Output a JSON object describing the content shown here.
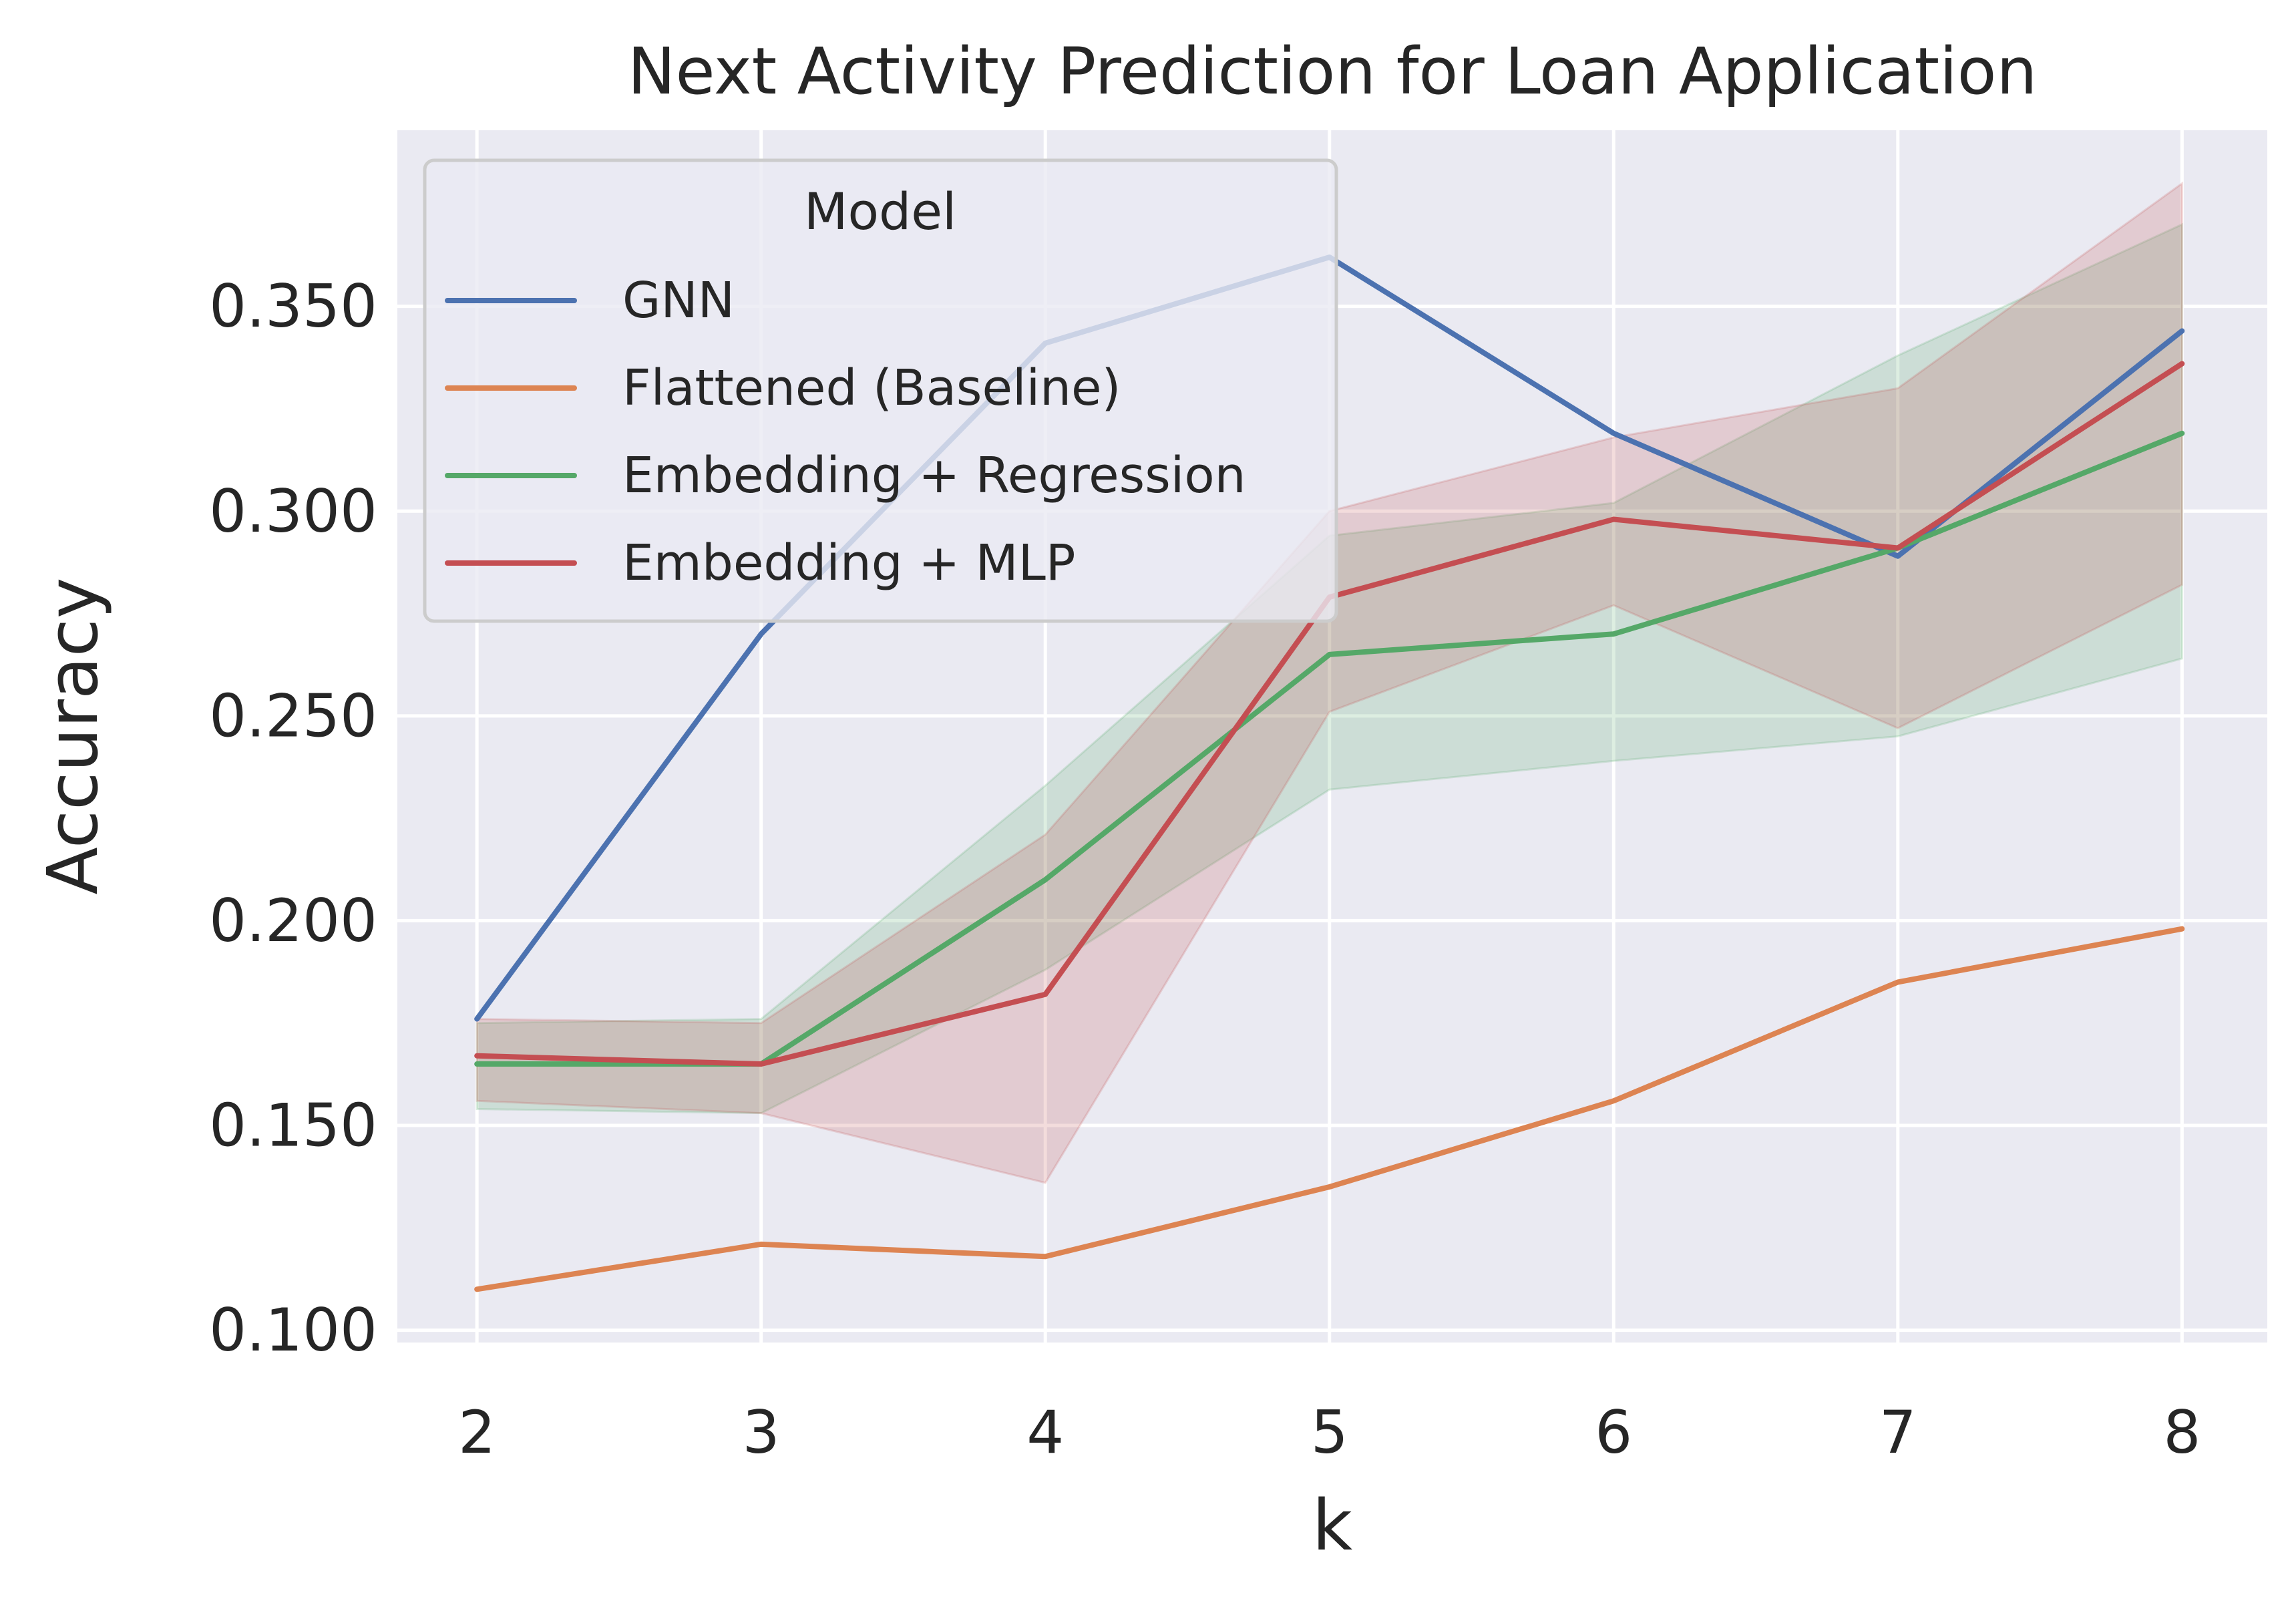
{
  "chart_data": {
    "type": "line",
    "title": "Next Activity Prediction for Loan Application",
    "xlabel": "k",
    "ylabel": "Accuracy",
    "x": [
      2,
      3,
      4,
      5,
      6,
      7,
      8
    ],
    "x_tick_labels": [
      "2",
      "3",
      "4",
      "5",
      "6",
      "7",
      "8"
    ],
    "y_ticks": [
      0.1,
      0.15,
      0.2,
      0.25,
      0.3,
      0.35
    ],
    "y_tick_labels": [
      "0.100",
      "0.150",
      "0.200",
      "0.250",
      "0.300",
      "0.350"
    ],
    "xlim": [
      1.72,
      8.3
    ],
    "ylim": [
      0.097,
      0.393
    ],
    "grid": true,
    "legend": {
      "title": "Model",
      "placement": "top-left"
    },
    "series": [
      {
        "name": "GNN",
        "color": "#4c72b0",
        "values": [
          0.176,
          0.27,
          0.341,
          0.362,
          0.319,
          0.289,
          0.344
        ]
      },
      {
        "name": "Flattened (Baseline)",
        "color": "#dd8452",
        "values": [
          0.11,
          0.121,
          0.118,
          0.135,
          0.156,
          0.185,
          0.198
        ]
      },
      {
        "name": "Embedding + Regression",
        "color": "#55a868",
        "values": [
          0.165,
          0.165,
          0.21,
          0.265,
          0.27,
          0.291,
          0.319
        ],
        "band_lower": [
          0.154,
          0.153,
          0.188,
          0.232,
          0.239,
          0.245,
          0.264
        ],
        "band_upper": [
          0.175,
          0.176,
          0.233,
          0.294,
          0.302,
          0.338,
          0.37
        ]
      },
      {
        "name": "Embedding + MLP",
        "color": "#c44e52",
        "values": [
          0.167,
          0.165,
          0.182,
          0.279,
          0.298,
          0.291,
          0.336
        ],
        "band_lower": [
          0.156,
          0.153,
          0.136,
          0.251,
          0.277,
          0.247,
          0.282
        ],
        "band_upper": [
          0.176,
          0.175,
          0.221,
          0.3,
          0.318,
          0.33,
          0.38
        ]
      }
    ]
  }
}
